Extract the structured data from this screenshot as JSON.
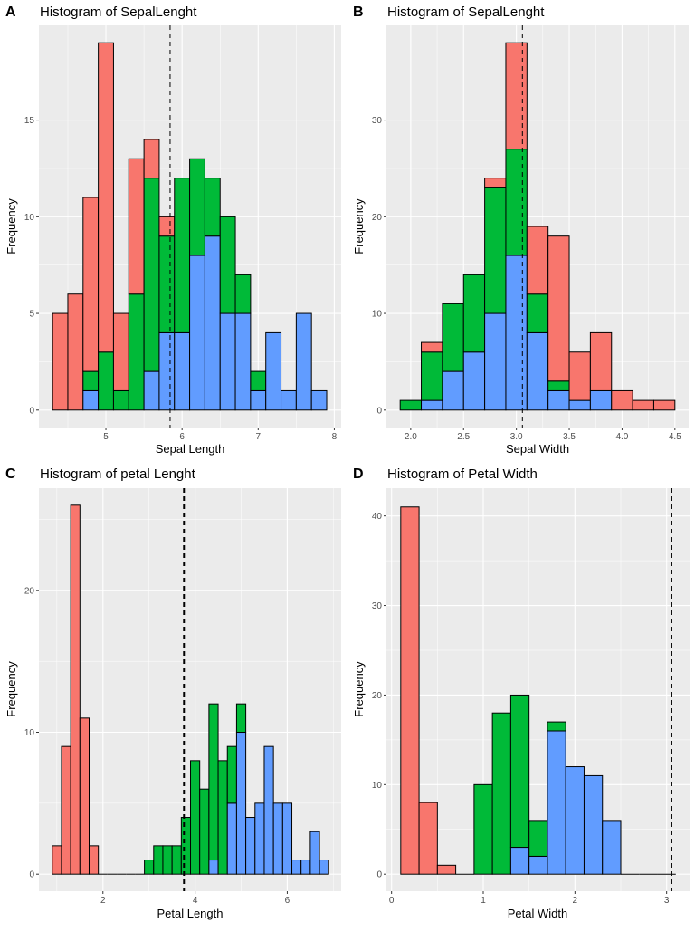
{
  "colors": {
    "setosa_fill": "#F8766D",
    "versicolor_fill": "#00BA38",
    "virginica_fill": "#619CFF",
    "panel_bg": "#EBEBEB",
    "grid": "#FFFFFF",
    "bar_outline": "#000000"
  },
  "chart_data": [
    {
      "type": "bar",
      "stacked": true,
      "panel_letter": "A",
      "title": "Histogram of SepalLenght",
      "xlabel": "Sepal Length",
      "ylabel": "Frequency",
      "bin_start": 4.3,
      "bin_width": 0.2,
      "xlim": [
        4.12,
        8.09
      ],
      "ylim": [
        -0.9,
        19.9
      ],
      "xticks": [
        "5",
        "6",
        "7",
        "8"
      ],
      "yticks": [
        "0",
        "5",
        "10",
        "15"
      ],
      "grid": true,
      "mean_line": 5.843,
      "series": [
        {
          "color": "#619CFF",
          "values": [
            0,
            0,
            1,
            0,
            0,
            0,
            2,
            4,
            4,
            8,
            9,
            5,
            5,
            1,
            4,
            1,
            5,
            1
          ]
        },
        {
          "color": "#00BA38",
          "values": [
            0,
            0,
            1,
            3,
            1,
            6,
            10,
            5,
            8,
            5,
            3,
            5,
            2,
            1,
            0,
            0,
            0,
            0
          ]
        },
        {
          "color": "#F8766D",
          "values": [
            5,
            6,
            9,
            16,
            4,
            7,
            2,
            1,
            0,
            0,
            0,
            0,
            0,
            0,
            0,
            0,
            0,
            0
          ]
        }
      ]
    },
    {
      "type": "bar",
      "stacked": true,
      "panel_letter": "B",
      "title": "Histogram of SepalLenght",
      "xlabel": "Sepal Width",
      "ylabel": "Frequency",
      "bin_start": 1.9,
      "bin_width": 0.2,
      "xlim": [
        1.77,
        4.63
      ],
      "ylim": [
        -1.8,
        39.8
      ],
      "xticks": [
        "2.0",
        "2.5",
        "3.0",
        "3.5",
        "4.0",
        "4.5"
      ],
      "yticks": [
        "0",
        "10",
        "20",
        "30"
      ],
      "grid": true,
      "mean_line": 3.057,
      "series": [
        {
          "color": "#619CFF",
          "values": [
            0,
            1,
            4,
            6,
            10,
            16,
            8,
            2,
            1,
            2,
            0,
            0,
            0
          ]
        },
        {
          "color": "#00BA38",
          "values": [
            1,
            5,
            7,
            8,
            13,
            11,
            4,
            1,
            0,
            0,
            0,
            0,
            0
          ]
        },
        {
          "color": "#F8766D",
          "values": [
            0,
            1,
            0,
            0,
            1,
            11,
            7,
            15,
            5,
            6,
            2,
            1,
            1
          ]
        }
      ]
    },
    {
      "type": "bar",
      "stacked": true,
      "panel_letter": "C",
      "title": "Histogram of petal Lenght",
      "xlabel": "Petal Length",
      "ylabel": "Frequency",
      "bin_start": 0.9,
      "bin_width": 0.2,
      "xlim": [
        0.61,
        7.17
      ],
      "ylim": [
        -1.2,
        27.2
      ],
      "xticks": [
        "2",
        "4",
        "6"
      ],
      "yticks": [
        "0",
        "10",
        "20"
      ],
      "grid": true,
      "mean_line": 3.758,
      "series": [
        {
          "color": "#619CFF",
          "values": [
            0,
            0,
            0,
            0,
            0,
            0,
            0,
            0,
            0,
            0,
            0,
            0,
            0,
            0,
            0,
            0,
            0,
            1,
            0,
            5,
            10,
            4,
            5,
            9,
            5,
            5,
            1,
            1,
            3,
            1
          ]
        },
        {
          "color": "#00BA38",
          "values": [
            0,
            0,
            0,
            0,
            0,
            0,
            0,
            0,
            0,
            0,
            1,
            2,
            2,
            2,
            4,
            8,
            6,
            11,
            8,
            4,
            2,
            0,
            0,
            0,
            0,
            0,
            0,
            0,
            0,
            0
          ]
        },
        {
          "color": "#F8766D",
          "values": [
            2,
            9,
            26,
            11,
            2,
            0,
            0,
            0,
            0,
            0,
            0,
            0,
            0,
            0,
            0,
            0,
            0,
            0,
            0,
            0,
            0,
            0,
            0,
            0,
            0,
            0,
            0,
            0,
            0,
            0
          ]
        }
      ]
    },
    {
      "type": "bar",
      "stacked": true,
      "panel_letter": "D",
      "title": "Histogram of Petal Width",
      "xlabel": "Petal Width",
      "ylabel": "Frequency",
      "bin_start": 0.1,
      "bin_width": 0.2,
      "xlim": [
        -0.056,
        3.25
      ],
      "ylim": [
        -1.9,
        43.1
      ],
      "xticks": [
        "0",
        "1",
        "2",
        "3"
      ],
      "yticks": [
        "0",
        "10",
        "20",
        "30",
        "40"
      ],
      "grid": true,
      "mean_line": 3.057,
      "series": [
        {
          "color": "#619CFF",
          "values": [
            0,
            0,
            0,
            0,
            0,
            0,
            3,
            2,
            16,
            12,
            11,
            6,
            0,
            0,
            0
          ]
        },
        {
          "color": "#00BA38",
          "values": [
            0,
            0,
            0,
            0,
            10,
            18,
            17,
            4,
            1,
            0,
            0,
            0,
            0,
            0,
            0
          ]
        },
        {
          "color": "#F8766D",
          "values": [
            41,
            8,
            1,
            0,
            0,
            0,
            0,
            0,
            0,
            0,
            0,
            0,
            0,
            0,
            0
          ]
        }
      ]
    }
  ]
}
